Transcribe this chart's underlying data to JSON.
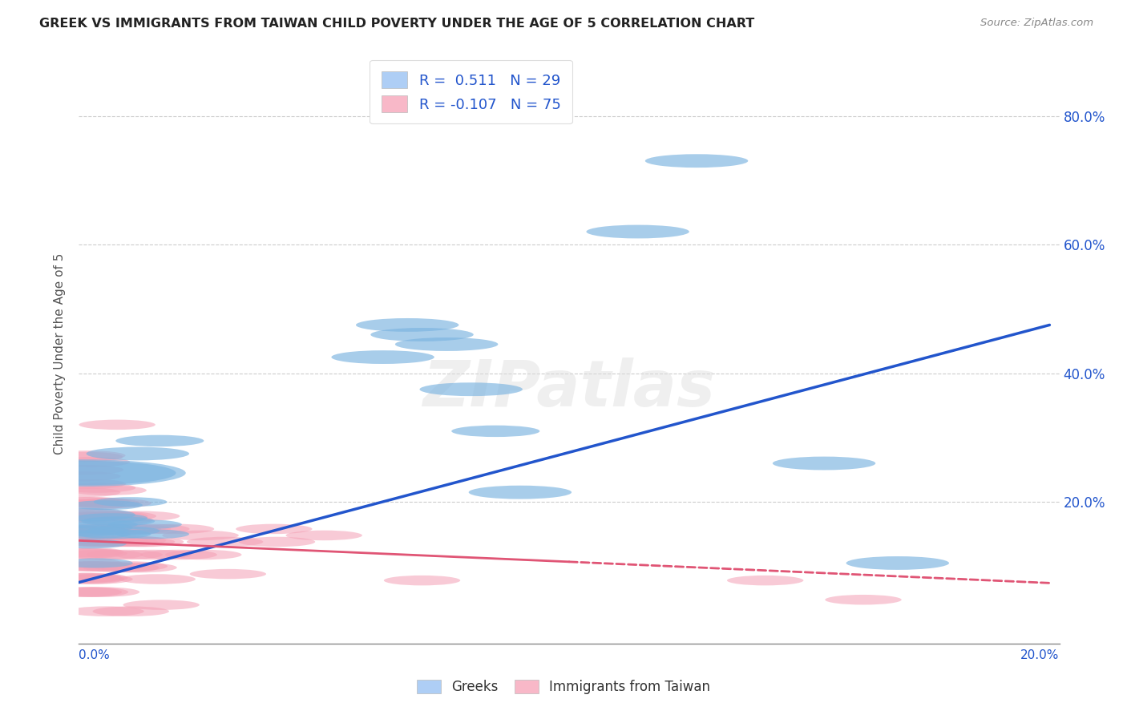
{
  "title": "GREEK VS IMMIGRANTS FROM TAIWAN CHILD POVERTY UNDER THE AGE OF 5 CORRELATION CHART",
  "source": "Source: ZipAtlas.com",
  "ylabel": "Child Poverty Under the Age of 5",
  "yticks": [
    0.0,
    0.2,
    0.4,
    0.6,
    0.8
  ],
  "ytick_labels": [
    "",
    "20.0%",
    "40.0%",
    "60.0%",
    "80.0%"
  ],
  "xlim": [
    0.0,
    0.2
  ],
  "ylim": [
    -0.02,
    0.88
  ],
  "legend_label_greek": "R =  0.511   N = 29",
  "legend_label_taiwan": "R = -0.107   N = 75",
  "greek_color": "#7ab3e0",
  "taiwan_color": "#f4a0b5",
  "greek_line_color": "#2255cc",
  "taiwan_line_color": "#e05575",
  "background_color": "#ffffff",
  "watermark": "ZIPatlas",
  "greek_line": {
    "x0": 0.0,
    "y0": 0.075,
    "x1": 0.198,
    "y1": 0.475
  },
  "taiwan_line_solid": {
    "x0": 0.0,
    "y0": 0.14,
    "x1": 0.1,
    "y1": 0.107
  },
  "taiwan_line_dash": {
    "x0": 0.1,
    "y0": 0.107,
    "x1": 0.198,
    "y1": 0.074
  },
  "greek_points": [
    [
      0.0008,
      0.245,
      28
    ],
    [
      0.001,
      0.18,
      14
    ],
    [
      0.0012,
      0.155,
      12
    ],
    [
      0.002,
      0.16,
      12
    ],
    [
      0.0022,
      0.135,
      10
    ],
    [
      0.003,
      0.15,
      10
    ],
    [
      0.0035,
      0.105,
      10
    ],
    [
      0.0045,
      0.165,
      10
    ],
    [
      0.0055,
      0.195,
      10
    ],
    [
      0.0065,
      0.175,
      10
    ],
    [
      0.0072,
      0.15,
      10
    ],
    [
      0.008,
      0.17,
      10
    ],
    [
      0.009,
      0.155,
      10
    ],
    [
      0.0105,
      0.2,
      10
    ],
    [
      0.012,
      0.275,
      14
    ],
    [
      0.0135,
      0.165,
      10
    ],
    [
      0.015,
      0.15,
      10
    ],
    [
      0.0165,
      0.295,
      12
    ],
    [
      0.062,
      0.425,
      14
    ],
    [
      0.067,
      0.475,
      14
    ],
    [
      0.07,
      0.46,
      14
    ],
    [
      0.075,
      0.445,
      14
    ],
    [
      0.08,
      0.375,
      14
    ],
    [
      0.085,
      0.31,
      12
    ],
    [
      0.09,
      0.215,
      14
    ],
    [
      0.114,
      0.62,
      14
    ],
    [
      0.126,
      0.73,
      14
    ],
    [
      0.152,
      0.26,
      14
    ],
    [
      0.167,
      0.105,
      14
    ]
  ],
  "taiwan_points": [
    [
      0.0003,
      0.195,
      14
    ],
    [
      0.0005,
      0.175,
      12
    ],
    [
      0.0006,
      0.155,
      12
    ],
    [
      0.0007,
      0.24,
      12
    ],
    [
      0.0007,
      0.215,
      12
    ],
    [
      0.0008,
      0.2,
      12
    ],
    [
      0.0008,
      0.178,
      12
    ],
    [
      0.0008,
      0.155,
      12
    ],
    [
      0.0009,
      0.14,
      12
    ],
    [
      0.0009,
      0.12,
      12
    ],
    [
      0.001,
      0.105,
      12
    ],
    [
      0.001,
      0.082,
      12
    ],
    [
      0.001,
      0.06,
      12
    ],
    [
      0.0012,
      0.27,
      12
    ],
    [
      0.0013,
      0.25,
      12
    ],
    [
      0.0014,
      0.122,
      12
    ],
    [
      0.0014,
      0.1,
      12
    ],
    [
      0.0015,
      0.08,
      12
    ],
    [
      0.0017,
      0.272,
      12
    ],
    [
      0.0018,
      0.228,
      12
    ],
    [
      0.0019,
      0.182,
      12
    ],
    [
      0.002,
      0.142,
      12
    ],
    [
      0.0021,
      0.12,
      12
    ],
    [
      0.0022,
      0.082,
      12
    ],
    [
      0.0023,
      0.06,
      12
    ],
    [
      0.0026,
      0.262,
      12
    ],
    [
      0.0027,
      0.2,
      12
    ],
    [
      0.0028,
      0.158,
      12
    ],
    [
      0.003,
      0.138,
      12
    ],
    [
      0.0031,
      0.1,
      12
    ],
    [
      0.0032,
      0.08,
      12
    ],
    [
      0.0038,
      0.222,
      12
    ],
    [
      0.004,
      0.178,
      12
    ],
    [
      0.0042,
      0.138,
      12
    ],
    [
      0.0044,
      0.1,
      12
    ],
    [
      0.0046,
      0.06,
      12
    ],
    [
      0.0048,
      0.198,
      12
    ],
    [
      0.005,
      0.158,
      12
    ],
    [
      0.0053,
      0.118,
      12
    ],
    [
      0.0055,
      0.03,
      12
    ],
    [
      0.006,
      0.218,
      12
    ],
    [
      0.0063,
      0.178,
      12
    ],
    [
      0.0066,
      0.138,
      12
    ],
    [
      0.007,
      0.198,
      12
    ],
    [
      0.0073,
      0.172,
      12
    ],
    [
      0.0078,
      0.32,
      12
    ],
    [
      0.008,
      0.178,
      12
    ],
    [
      0.0083,
      0.138,
      12
    ],
    [
      0.0086,
      0.098,
      12
    ],
    [
      0.009,
      0.158,
      12
    ],
    [
      0.0093,
      0.118,
      12
    ],
    [
      0.01,
      0.14,
      12
    ],
    [
      0.0103,
      0.1,
      12
    ],
    [
      0.0106,
      0.03,
      12
    ],
    [
      0.011,
      0.158,
      12
    ],
    [
      0.0118,
      0.138,
      12
    ],
    [
      0.0122,
      0.098,
      12
    ],
    [
      0.0128,
      0.178,
      12
    ],
    [
      0.0136,
      0.138,
      12
    ],
    [
      0.0148,
      0.158,
      12
    ],
    [
      0.0152,
      0.118,
      12
    ],
    [
      0.016,
      0.08,
      12
    ],
    [
      0.0168,
      0.04,
      12
    ],
    [
      0.0198,
      0.158,
      12
    ],
    [
      0.0204,
      0.118,
      12
    ],
    [
      0.0248,
      0.148,
      12
    ],
    [
      0.0254,
      0.118,
      12
    ],
    [
      0.0298,
      0.138,
      12
    ],
    [
      0.0304,
      0.088,
      12
    ],
    [
      0.0398,
      0.158,
      12
    ],
    [
      0.0404,
      0.138,
      12
    ],
    [
      0.05,
      0.148,
      12
    ],
    [
      0.07,
      0.078,
      12
    ],
    [
      0.14,
      0.078,
      12
    ],
    [
      0.16,
      0.048,
      12
    ]
  ]
}
